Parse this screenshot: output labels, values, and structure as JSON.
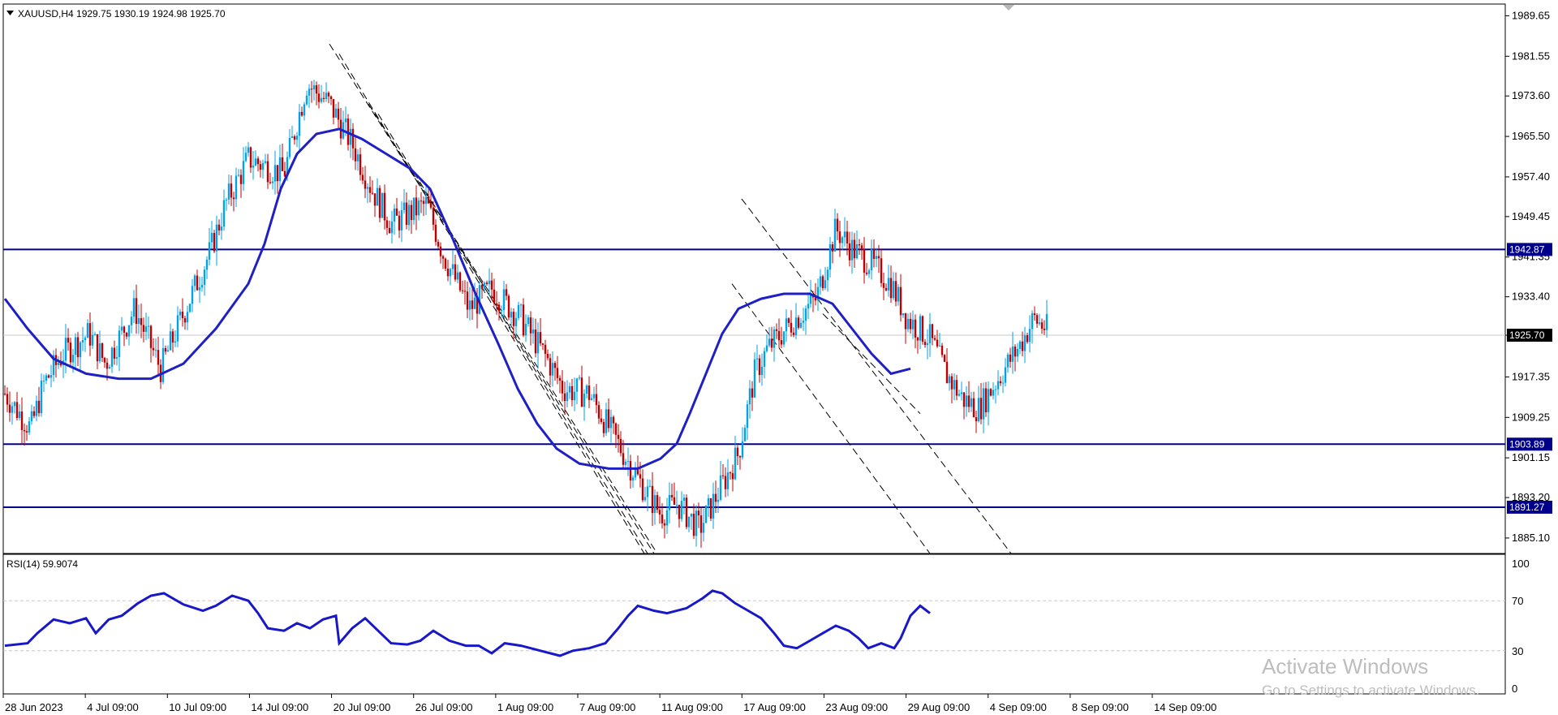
{
  "window": {
    "symbol_info": "XAUUSD,H4  1929.75 1930.19 1924.98 1925.70"
  },
  "colors": {
    "bull": "#00a2e8",
    "bear": "#c00000",
    "ma": "#1f1fc6",
    "levels": "#00008b",
    "rsi": "#1818c8",
    "trend": "#000000",
    "last_price_line": "#c8c8c8",
    "badge_bg": "#00008b",
    "last_badge_bg": "#000000"
  },
  "chart_data": [
    {
      "type": "candlestick",
      "title": "XAUUSD,H4",
      "ohlc_last": {
        "open": 1929.75,
        "high": 1930.19,
        "low": 1924.98,
        "close": 1925.7
      },
      "ylim": [
        1882.0,
        1992.0
      ],
      "y_ticks": [
        "1989.65",
        "1981.55",
        "1973.60",
        "1965.50",
        "1957.40",
        "1949.45",
        "1941.35",
        "1933.40",
        "1925.70",
        "1917.35",
        "1909.25",
        "1901.15",
        "1893.20",
        "1885.10"
      ],
      "x_ticks": [
        "28 Jun 2023",
        "4 Jul 09:00",
        "10 Jul 09:00",
        "14 Jul 09:00",
        "20 Jul 09:00",
        "26 Jul 09:00",
        "1 Aug 09:00",
        "7 Aug 09:00",
        "11 Aug 09:00",
        "17 Aug 09:00",
        "23 Aug 09:00",
        "29 Aug 09:00",
        "4 Sep 09:00",
        "8 Sep 09:00",
        "14 Sep 09:00"
      ],
      "close_path": [
        [
          0,
          1914
        ],
        [
          16,
          1907
        ],
        [
          24,
          1916
        ],
        [
          36,
          1922
        ],
        [
          52,
          1926
        ],
        [
          62,
          1920
        ],
        [
          80,
          1931
        ],
        [
          96,
          1919
        ],
        [
          110,
          1930
        ],
        [
          126,
          1942
        ],
        [
          136,
          1952
        ],
        [
          150,
          1961
        ],
        [
          172,
          1958
        ],
        [
          186,
          1976
        ],
        [
          200,
          1972
        ],
        [
          214,
          1964
        ],
        [
          226,
          1955
        ],
        [
          238,
          1948
        ],
        [
          260,
          1952
        ],
        [
          270,
          1942
        ],
        [
          286,
          1931
        ],
        [
          300,
          1935
        ],
        [
          318,
          1929
        ],
        [
          334,
          1921
        ],
        [
          344,
          1915
        ],
        [
          360,
          1914
        ],
        [
          376,
          1905
        ],
        [
          390,
          1897
        ],
        [
          404,
          1890
        ],
        [
          414,
          1892
        ],
        [
          428,
          1887
        ],
        [
          436,
          1892
        ],
        [
          452,
          1902
        ],
        [
          462,
          1918
        ],
        [
          470,
          1923
        ],
        [
          484,
          1928
        ],
        [
          500,
          1933
        ],
        [
          512,
          1947
        ],
        [
          522,
          1943
        ],
        [
          534,
          1940
        ],
        [
          546,
          1936
        ],
        [
          556,
          1929
        ],
        [
          570,
          1925
        ],
        [
          580,
          1918
        ],
        [
          590,
          1913
        ],
        [
          600,
          1911
        ],
        [
          604,
          1913
        ],
        [
          616,
          1919
        ],
        [
          626,
          1924
        ],
        [
          634,
          1929
        ],
        [
          642,
          1927
        ]
      ],
      "moving_average": {
        "series_values": [
          [
            0,
            1933
          ],
          [
            14,
            1927
          ],
          [
            30,
            1921
          ],
          [
            50,
            1918
          ],
          [
            70,
            1917
          ],
          [
            90,
            1917
          ],
          [
            110,
            1920
          ],
          [
            130,
            1927
          ],
          [
            150,
            1936
          ],
          [
            160,
            1944
          ],
          [
            170,
            1955
          ],
          [
            180,
            1962
          ],
          [
            192,
            1966
          ],
          [
            206,
            1967
          ],
          [
            220,
            1965
          ],
          [
            235,
            1962
          ],
          [
            250,
            1959
          ],
          [
            262,
            1955
          ],
          [
            276,
            1945
          ],
          [
            290,
            1934
          ],
          [
            304,
            1924
          ],
          [
            316,
            1915
          ],
          [
            328,
            1908
          ],
          [
            340,
            1903
          ],
          [
            354,
            1900
          ],
          [
            372,
            1899
          ],
          [
            390,
            1899
          ],
          [
            404,
            1901
          ],
          [
            414,
            1904
          ],
          [
            422,
            1910
          ],
          [
            432,
            1918
          ],
          [
            442,
            1926
          ],
          [
            452,
            1931
          ],
          [
            466,
            1933
          ],
          [
            480,
            1934
          ],
          [
            496,
            1934
          ],
          [
            510,
            1932
          ],
          [
            522,
            1927
          ],
          [
            534,
            1922
          ],
          [
            546,
            1918
          ],
          [
            558,
            1919
          ]
        ]
      },
      "levels": [
        {
          "value": 1942.87,
          "label": "1942.87"
        },
        {
          "value": 1903.89,
          "label": "1903.89"
        },
        {
          "value": 1891.27,
          "label": "1891.27"
        }
      ],
      "last_price": {
        "value": 1925.7,
        "label": "1925.70"
      },
      "trend_lines": [
        {
          "from": [
            200,
            1984
          ],
          "to": [
            400,
            1882
          ]
        },
        {
          "from": [
            206,
            1982
          ],
          "to": [
            394,
            1882
          ]
        },
        {
          "from": [
            224,
            1972
          ],
          "to": [
            402,
            1882
          ]
        },
        {
          "from": [
            230,
            1970
          ],
          "to": [
            396,
            1882
          ]
        },
        {
          "from": [
            454,
            1953
          ],
          "to": [
            620,
            1881
          ]
        },
        {
          "from": [
            448,
            1936
          ],
          "to": [
            570,
            1881
          ]
        },
        {
          "from": [
            504,
            1930
          ],
          "to": [
            564,
            1910
          ]
        }
      ]
    },
    {
      "type": "line",
      "title": "RSI(14) 59.9074",
      "ylim": [
        0,
        100
      ],
      "y_ticks": [
        "100",
        "70",
        "30",
        "0"
      ],
      "levels": [
        70,
        30
      ],
      "series": [
        {
          "values": [
            [
              0,
              34
            ],
            [
              14,
              36
            ],
            [
              20,
              44
            ],
            [
              30,
              55
            ],
            [
              40,
              52
            ],
            [
              50,
              56
            ],
            [
              56,
              44
            ],
            [
              64,
              55
            ],
            [
              72,
              58
            ],
            [
              82,
              68
            ],
            [
              90,
              74
            ],
            [
              98,
              76
            ],
            [
              110,
              67
            ],
            [
              122,
              62
            ],
            [
              130,
              66
            ],
            [
              140,
              74
            ],
            [
              150,
              70
            ],
            [
              156,
              60
            ],
            [
              162,
              48
            ],
            [
              172,
              46
            ],
            [
              180,
              52
            ],
            [
              188,
              48
            ],
            [
              196,
              55
            ],
            [
              204,
              58
            ],
            [
              206,
              36
            ],
            [
              214,
              48
            ],
            [
              222,
              56
            ],
            [
              230,
              46
            ],
            [
              238,
              36
            ],
            [
              248,
              35
            ],
            [
              256,
              38
            ],
            [
              264,
              46
            ],
            [
              274,
              38
            ],
            [
              284,
              34
            ],
            [
              292,
              34
            ],
            [
              300,
              28
            ],
            [
              308,
              36
            ],
            [
              318,
              34
            ],
            [
              330,
              30
            ],
            [
              342,
              26
            ],
            [
              350,
              30
            ],
            [
              360,
              32
            ],
            [
              370,
              36
            ],
            [
              378,
              48
            ],
            [
              384,
              58
            ],
            [
              390,
              66
            ],
            [
              400,
              62
            ],
            [
              408,
              60
            ],
            [
              420,
              64
            ],
            [
              430,
              72
            ],
            [
              436,
              78
            ],
            [
              442,
              76
            ],
            [
              450,
              68
            ],
            [
              458,
              62
            ],
            [
              466,
              56
            ],
            [
              474,
              44
            ],
            [
              480,
              34
            ],
            [
              488,
              32
            ],
            [
              496,
              38
            ],
            [
              504,
              44
            ],
            [
              512,
              50
            ],
            [
              520,
              46
            ],
            [
              526,
              40
            ],
            [
              532,
              32
            ],
            [
              540,
              36
            ],
            [
              548,
              32
            ],
            [
              552,
              40
            ],
            [
              558,
              58
            ],
            [
              564,
              66
            ],
            [
              570,
              60
            ]
          ]
        }
      ]
    }
  ],
  "watermark": {
    "line1": "Activate Windows",
    "line2": "Go to Settings to activate Windows."
  }
}
